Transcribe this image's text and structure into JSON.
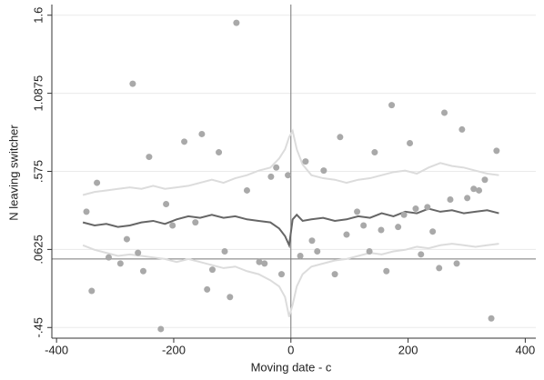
{
  "chart_data": {
    "type": "scatter",
    "x_label": "Moving date - c",
    "y_label": "N leaving switcher",
    "xlim": [
      -408,
      418
    ],
    "ylim": [
      -0.52,
      1.67
    ],
    "xticks": [
      -400,
      -200,
      0,
      200,
      400
    ],
    "yticks": [
      {
        "value": -0.45,
        "label": "-.45"
      },
      {
        "value": 0.0625,
        "label": ".0625"
      },
      {
        "value": 0.575,
        "label": ".575"
      },
      {
        "value": 1.0875,
        "label": "1.0875"
      },
      1.6
    ],
    "grid": true,
    "hline": 0,
    "vline": 0,
    "points": {
      "color": "#a9a9a9",
      "x": [
        -349,
        -340,
        -331,
        -311,
        -291,
        -280,
        -270,
        -261,
        -252,
        -242,
        -222,
        -213,
        -202,
        -182,
        -163,
        -152,
        -143,
        -134,
        -123,
        -113,
        -104,
        -93,
        -75,
        -54,
        -45,
        -34,
        -25,
        -16,
        -5,
        16,
        25,
        36,
        45,
        56,
        75,
        84,
        95,
        113,
        124,
        134,
        143,
        154,
        163,
        172,
        183,
        193,
        203,
        213,
        222,
        233,
        242,
        253,
        262,
        272,
        283,
        292,
        301,
        312,
        321,
        331,
        342,
        351
      ],
      "values": [
        0.31,
        -0.21,
        0.5,
        0.01,
        -0.03,
        0.13,
        1.15,
        0.04,
        -0.08,
        0.67,
        -0.46,
        0.36,
        0.22,
        0.77,
        0.24,
        0.82,
        -0.2,
        -0.07,
        0.7,
        0.05,
        -0.25,
        1.55,
        0.45,
        -0.02,
        -0.03,
        0.54,
        0.6,
        -0.1,
        0.55,
        0.02,
        0.64,
        0.12,
        0.05,
        0.58,
        -0.1,
        0.8,
        0.16,
        0.31,
        0.22,
        0.05,
        0.7,
        0.19,
        -0.08,
        1.01,
        0.21,
        0.29,
        0.76,
        0.33,
        0.03,
        0.34,
        0.18,
        -0.06,
        0.96,
        0.39,
        -0.03,
        0.85,
        0.4,
        0.46,
        0.45,
        0.52,
        -0.39,
        0.71
      ]
    },
    "lines": {
      "x": [
        -355,
        -335,
        -315,
        -295,
        -275,
        -255,
        -235,
        -215,
        -195,
        -175,
        -155,
        -135,
        -115,
        -95,
        -75,
        -55,
        -35,
        -20,
        -10,
        -3,
        3,
        10,
        20,
        35,
        55,
        75,
        95,
        115,
        135,
        155,
        175,
        195,
        215,
        235,
        255,
        275,
        295,
        315,
        335,
        355
      ],
      "series": [
        {
          "color": "#dcdcdc",
          "values": [
            0.42,
            0.44,
            0.45,
            0.46,
            0.47,
            0.46,
            0.48,
            0.46,
            0.47,
            0.48,
            0.5,
            0.52,
            0.5,
            0.53,
            0.55,
            0.58,
            0.6,
            0.66,
            0.72,
            0.8,
            0.84,
            0.72,
            0.62,
            0.55,
            0.53,
            0.52,
            0.5,
            0.52,
            0.53,
            0.55,
            0.57,
            0.58,
            0.56,
            0.6,
            0.63,
            0.61,
            0.6,
            0.58,
            0.56,
            0.55
          ]
        },
        {
          "color": "#dcdcdc",
          "values": [
            0.09,
            0.06,
            0.04,
            0.02,
            0.03,
            0.02,
            0.01,
            0.0,
            -0.02,
            0.0,
            -0.02,
            -0.04,
            -0.06,
            -0.05,
            -0.08,
            -0.1,
            -0.14,
            -0.18,
            -0.25,
            -0.38,
            -0.3,
            -0.18,
            -0.1,
            -0.05,
            -0.03,
            -0.01,
            0.0,
            0.02,
            0.04,
            0.03,
            0.05,
            0.06,
            0.08,
            0.07,
            0.09,
            0.1,
            0.09,
            0.08,
            0.09,
            0.1
          ]
        },
        {
          "color": "#666666",
          "values": [
            0.24,
            0.22,
            0.23,
            0.21,
            0.22,
            0.24,
            0.25,
            0.23,
            0.26,
            0.28,
            0.27,
            0.29,
            0.27,
            0.28,
            0.26,
            0.25,
            0.24,
            0.2,
            0.15,
            0.09,
            0.26,
            0.29,
            0.25,
            0.26,
            0.27,
            0.25,
            0.26,
            0.28,
            0.27,
            0.3,
            0.28,
            0.31,
            0.3,
            0.33,
            0.31,
            0.32,
            0.3,
            0.31,
            0.32,
            0.3
          ]
        }
      ]
    }
  }
}
